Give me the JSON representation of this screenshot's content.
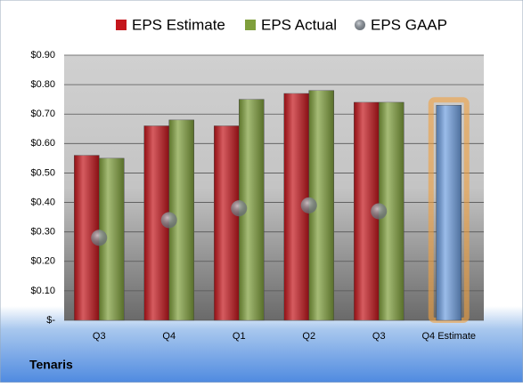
{
  "chart_data": {
    "type": "bar",
    "title": "Tenaris",
    "categories": [
      "Q3",
      "Q4",
      "Q1",
      "Q2",
      "Q3",
      "Q4 Estimate"
    ],
    "series": [
      {
        "name": "EPS Estimate",
        "color": "#c4161c",
        "values": [
          0.56,
          0.66,
          0.66,
          0.77,
          0.74,
          0.73
        ]
      },
      {
        "name": "EPS Actual",
        "color": "#7f9f3c",
        "values": [
          0.55,
          0.68,
          0.75,
          0.78,
          0.74,
          null
        ]
      },
      {
        "name": "EPS GAAP",
        "color": "#9aa3ad",
        "values": [
          0.28,
          0.34,
          0.38,
          0.39,
          0.37,
          null
        ]
      }
    ],
    "forecast_color": "#6f9fe0",
    "ylim": [
      0,
      0.9
    ],
    "yticks": [
      {
        "value": 0,
        "label": "$-"
      },
      {
        "value": 0.1,
        "label": "$0.10"
      },
      {
        "value": 0.2,
        "label": "$0.20"
      },
      {
        "value": 0.3,
        "label": "$0.30"
      },
      {
        "value": 0.4,
        "label": "$0.40"
      },
      {
        "value": 0.5,
        "label": "$0.50"
      },
      {
        "value": 0.6,
        "label": "$0.60"
      },
      {
        "value": 0.7,
        "label": "$0.70"
      },
      {
        "value": 0.8,
        "label": "$0.80"
      },
      {
        "value": 0.9,
        "label": "$0.90"
      }
    ],
    "grid": true
  }
}
